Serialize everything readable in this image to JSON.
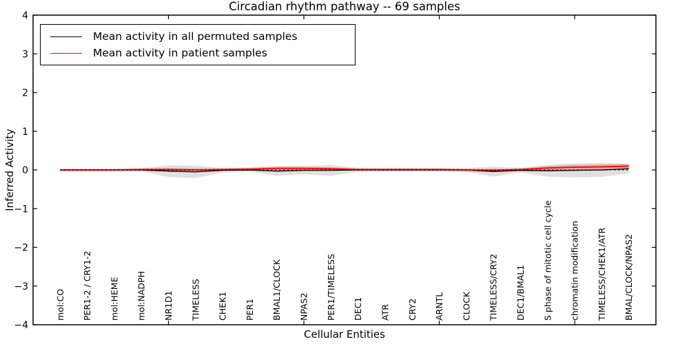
{
  "figure": {
    "title": "Circadian rhythm pathway -- 69 samples",
    "xlabel": "Cellular Entities",
    "ylabel": "Inferred Activity"
  },
  "legend": {
    "items": [
      {
        "label": "Mean activity in all permuted samples",
        "color": "#000000"
      },
      {
        "label": "Mean activity in patient samples",
        "color": "#ff0000"
      }
    ]
  },
  "chart_data": {
    "type": "line",
    "title": "Circadian rhythm pathway -- 69 samples",
    "xlabel": "Cellular Entities",
    "ylabel": "Inferred Activity",
    "ylim": [
      -4,
      4
    ],
    "xlim": [
      0,
      23
    ],
    "yticks": [
      4,
      3,
      2,
      1,
      0,
      -1,
      -2,
      -3,
      -4
    ],
    "xticks_numeric": [
      5,
      10,
      15,
      20
    ],
    "grid": false,
    "legend_position": "upper left",
    "categories": [
      "mol:CO",
      "PER1-2 / CRY1-2",
      "mol:HEME",
      "mol:NADPH",
      "NR1D1",
      "TIMELESS",
      "CHEK1",
      "PER1",
      "BMAL1/CLOCK",
      "NPAS2",
      "PER1/TIMELESS",
      "DEC1",
      "ATR",
      "CRY2",
      "ARNTL",
      "CLOCK",
      "TIMELESS/CRY2",
      "DEC1/BMAL1",
      "S phase of mitotic cell cycle",
      "chromatin modification",
      "TIMELESS/CHEK1/ATR",
      "BMAL/CLOCK/NPAS2"
    ],
    "x": [
      1,
      2,
      3,
      4,
      5,
      6,
      7,
      8,
      9,
      10,
      11,
      12,
      13,
      14,
      15,
      16,
      17,
      18,
      19,
      20,
      21,
      22
    ],
    "series": [
      {
        "name": "Mean activity in all permuted samples",
        "color": "#000000",
        "line_width": 1.4,
        "values": [
          0.0,
          0.0,
          0.0,
          0.0,
          -0.03,
          -0.05,
          -0.01,
          0.0,
          -0.03,
          -0.01,
          -0.01,
          0.0,
          0.0,
          0.0,
          0.0,
          0.0,
          -0.04,
          -0.01,
          -0.02,
          -0.01,
          0.0,
          0.03
        ],
        "band_halfwidth": [
          0.03,
          0.03,
          0.03,
          0.04,
          0.15,
          0.16,
          0.06,
          0.05,
          0.12,
          0.1,
          0.14,
          0.05,
          0.04,
          0.04,
          0.04,
          0.05,
          0.13,
          0.06,
          0.15,
          0.18,
          0.18,
          0.12
        ],
        "band_color": "#000000",
        "band_opacity": 0.12
      },
      {
        "name": "Mean activity in patient samples",
        "color": "#ff0000",
        "line_width": 1.8,
        "values": [
          0.0,
          0.0,
          0.0,
          0.01,
          0.01,
          0.0,
          0.01,
          0.02,
          0.04,
          0.04,
          0.03,
          0.01,
          0.01,
          0.01,
          0.01,
          0.0,
          -0.01,
          0.01,
          0.05,
          0.07,
          0.08,
          0.1
        ],
        "band_halfwidth": [
          0.03,
          0.03,
          0.03,
          0.03,
          0.04,
          0.04,
          0.03,
          0.04,
          0.05,
          0.05,
          0.04,
          0.03,
          0.03,
          0.03,
          0.03,
          0.03,
          0.04,
          0.03,
          0.05,
          0.06,
          0.06,
          0.06
        ],
        "band_color": "#ff0000",
        "band_opacity": 0.25
      }
    ],
    "zero_line": {
      "y": 0,
      "style": "dotted",
      "color": "#000000"
    }
  }
}
